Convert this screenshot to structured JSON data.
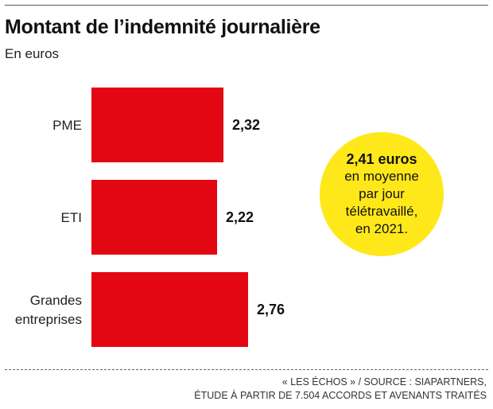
{
  "header": {
    "title": "Montant de l’indemnité journalière",
    "subtitle": "En euros"
  },
  "chart_data": {
    "type": "bar",
    "orientation": "horizontal",
    "title": "Montant de l’indemnité journalière",
    "subtitle": "En euros",
    "categories": [
      {
        "lines": [
          "PME"
        ]
      },
      {
        "lines": [
          "ETI"
        ]
      },
      {
        "lines": [
          "Grandes",
          "entreprises"
        ]
      }
    ],
    "values": [
      2.32,
      2.22,
      2.76
    ],
    "value_labels": [
      "2,32",
      "2,22",
      "2,76"
    ],
    "xlim": [
      0,
      2.76
    ],
    "bar_color": "#e30613",
    "grid": false,
    "legend": "none"
  },
  "callout": {
    "headline": "2,41 euros",
    "lines": [
      "en moyenne",
      "par jour",
      "télétravaillé,",
      "en 2021."
    ],
    "color": "#ffe81a"
  },
  "footer": {
    "line1": "« LES ÉCHOS » / SOURCE : SIAPARTNERS,",
    "line2": "ÉTUDE À PARTIR DE 7.504 ACCORDS ET AVENANTS TRAITÉS"
  }
}
